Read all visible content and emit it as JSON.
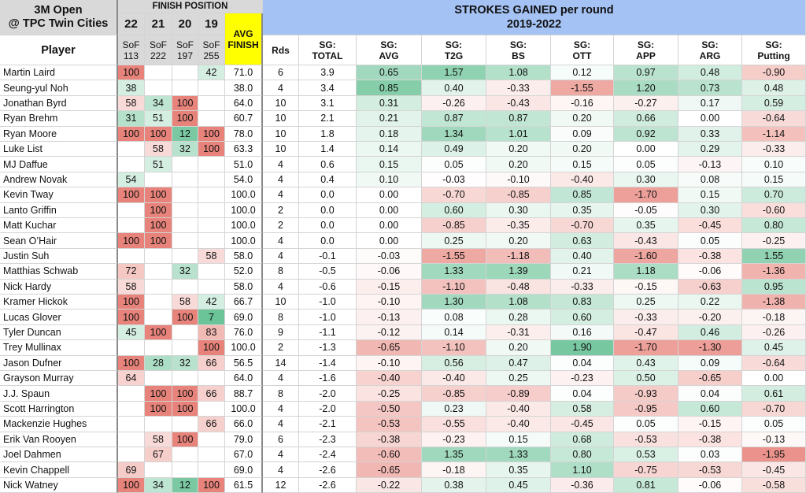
{
  "header": {
    "event_line1": "3M Open",
    "event_line2": "@ TPC Twin Cities",
    "player_label": "Player",
    "finish_position_label": "FINISH POSITION",
    "years": [
      "22",
      "21",
      "20",
      "19"
    ],
    "sof_label": "SoF",
    "sof_values": [
      "113",
      "222",
      "197",
      "255"
    ],
    "avg_finish_line1": "AVG",
    "avg_finish_line2": "FINISH",
    "sg_title_line1": "STROKES GAINED per round",
    "sg_title_line2": "2019-2022",
    "rds_label": "Rds",
    "stat_columns": [
      [
        "SG:",
        "TOTAL"
      ],
      [
        "SG:",
        "AVG"
      ],
      [
        "SG:",
        "T2G"
      ],
      [
        "SG:",
        "BS"
      ],
      [
        "SG:",
        "OTT"
      ],
      [
        "SG:",
        "APP"
      ],
      [
        "SG:",
        "ARG"
      ],
      [
        "SG:",
        "Putting"
      ]
    ]
  },
  "colors": {
    "header_gray": "#d9d9d9",
    "sg_header_blue": "#a4c2f4",
    "avg_finish_yellow": "#ffff00",
    "heat_positive": "#57bb8a",
    "heat_negative": "#e67c73",
    "finish_good": "#57bb8a",
    "finish_bad": "#e67c73"
  },
  "chart_data": {
    "type": "table",
    "columns": [
      "Player",
      "22",
      "21",
      "20",
      "19",
      "AVG FINISH",
      "Rds",
      "SG: TOTAL",
      "SG: AVG",
      "SG: T2G",
      "SG: BS",
      "SG: OTT",
      "SG: APP",
      "SG: ARG",
      "SG: Putting"
    ],
    "rows": [
      {
        "player": "Martin Laird",
        "finish": [
          "100",
          "",
          "",
          "42"
        ],
        "avg": "71.0",
        "rds": "6",
        "sg": [
          "3.9",
          "0.65",
          "1.57",
          "1.08",
          "0.12",
          "0.97",
          "0.48",
          "-0.90"
        ]
      },
      {
        "player": "Seung-yul Noh",
        "finish": [
          "38",
          "",
          "",
          ""
        ],
        "avg": "38.0",
        "rds": "4",
        "sg": [
          "3.4",
          "0.85",
          "0.40",
          "-0.33",
          "-1.55",
          "1.20",
          "0.73",
          "0.48"
        ]
      },
      {
        "player": "Jonathan Byrd",
        "finish": [
          "58",
          "34",
          "100",
          ""
        ],
        "avg": "64.0",
        "rds": "10",
        "sg": [
          "3.1",
          "0.31",
          "-0.26",
          "-0.43",
          "-0.16",
          "-0.27",
          "0.17",
          "0.59"
        ]
      },
      {
        "player": "Ryan Brehm",
        "finish": [
          "31",
          "51",
          "100",
          ""
        ],
        "avg": "60.7",
        "rds": "10",
        "sg": [
          "2.1",
          "0.21",
          "0.87",
          "0.87",
          "0.20",
          "0.66",
          "0.00",
          "-0.64"
        ]
      },
      {
        "player": "Ryan Moore",
        "finish": [
          "100",
          "100",
          "12",
          "100"
        ],
        "avg": "78.0",
        "rds": "10",
        "sg": [
          "1.8",
          "0.18",
          "1.34",
          "1.01",
          "0.09",
          "0.92",
          "0.33",
          "-1.14"
        ]
      },
      {
        "player": "Luke List",
        "finish": [
          "",
          "58",
          "32",
          "100"
        ],
        "avg": "63.3",
        "rds": "10",
        "sg": [
          "1.4",
          "0.14",
          "0.49",
          "0.20",
          "0.20",
          "0.00",
          "0.29",
          "-0.33"
        ]
      },
      {
        "player": "MJ Daffue",
        "finish": [
          "",
          "51",
          "",
          ""
        ],
        "avg": "51.0",
        "rds": "4",
        "sg": [
          "0.6",
          "0.15",
          "0.05",
          "0.20",
          "0.15",
          "0.05",
          "-0.13",
          "0.10"
        ]
      },
      {
        "player": "Andrew Novak",
        "finish": [
          "54",
          "",
          "",
          ""
        ],
        "avg": "54.0",
        "rds": "4",
        "sg": [
          "0.4",
          "0.10",
          "-0.03",
          "-0.10",
          "-0.40",
          "0.30",
          "0.08",
          "0.15"
        ]
      },
      {
        "player": "Kevin Tway",
        "finish": [
          "100",
          "100",
          "",
          ""
        ],
        "avg": "100.0",
        "rds": "4",
        "sg": [
          "0.0",
          "0.00",
          "-0.70",
          "-0.85",
          "0.85",
          "-1.70",
          "0.15",
          "0.70"
        ]
      },
      {
        "player": "Lanto Griffin",
        "finish": [
          "",
          "100",
          "",
          ""
        ],
        "avg": "100.0",
        "rds": "2",
        "sg": [
          "0.0",
          "0.00",
          "0.60",
          "0.30",
          "0.35",
          "-0.05",
          "0.30",
          "-0.60"
        ]
      },
      {
        "player": "Matt Kuchar",
        "finish": [
          "",
          "100",
          "",
          ""
        ],
        "avg": "100.0",
        "rds": "2",
        "sg": [
          "0.0",
          "0.00",
          "-0.85",
          "-0.35",
          "-0.70",
          "0.35",
          "-0.45",
          "0.80"
        ]
      },
      {
        "player": "Sean O’Hair",
        "finish": [
          "100",
          "100",
          "",
          ""
        ],
        "avg": "100.0",
        "rds": "4",
        "sg": [
          "0.0",
          "0.00",
          "0.25",
          "0.20",
          "0.63",
          "-0.43",
          "0.05",
          "-0.25"
        ]
      },
      {
        "player": "Justin Suh",
        "finish": [
          "",
          "",
          "",
          "58"
        ],
        "avg": "58.0",
        "rds": "4",
        "sg": [
          "-0.1",
          "-0.03",
          "-1.55",
          "-1.18",
          "0.40",
          "-1.60",
          "-0.38",
          "1.55"
        ]
      },
      {
        "player": "Matthias Schwab",
        "finish": [
          "72",
          "",
          "32",
          ""
        ],
        "avg": "52.0",
        "rds": "8",
        "sg": [
          "-0.5",
          "-0.06",
          "1.33",
          "1.39",
          "0.21",
          "1.18",
          "-0.06",
          "-1.36"
        ]
      },
      {
        "player": "Nick Hardy",
        "finish": [
          "58",
          "",
          "",
          ""
        ],
        "avg": "58.0",
        "rds": "4",
        "sg": [
          "-0.6",
          "-0.15",
          "-1.10",
          "-0.48",
          "-0.33",
          "-0.15",
          "-0.63",
          "0.95"
        ]
      },
      {
        "player": "Kramer Hickok",
        "finish": [
          "100",
          "",
          "58",
          "42"
        ],
        "avg": "66.7",
        "rds": "10",
        "sg": [
          "-1.0",
          "-0.10",
          "1.30",
          "1.08",
          "0.83",
          "0.25",
          "0.22",
          "-1.38"
        ]
      },
      {
        "player": "Lucas Glover",
        "finish": [
          "100",
          "",
          "100",
          "7"
        ],
        "avg": "69.0",
        "rds": "8",
        "sg": [
          "-1.0",
          "-0.13",
          "0.08",
          "0.28",
          "0.60",
          "-0.33",
          "-0.20",
          "-0.18"
        ]
      },
      {
        "player": "Tyler Duncan",
        "finish": [
          "45",
          "100",
          "",
          "83"
        ],
        "avg": "76.0",
        "rds": "9",
        "sg": [
          "-1.1",
          "-0.12",
          "0.14",
          "-0.31",
          "0.16",
          "-0.47",
          "0.46",
          "-0.26"
        ]
      },
      {
        "player": "Trey Mullinax",
        "finish": [
          "",
          "",
          "",
          "100"
        ],
        "avg": "100.0",
        "rds": "2",
        "sg": [
          "-1.3",
          "-0.65",
          "-1.10",
          "0.20",
          "1.90",
          "-1.70",
          "-1.30",
          "0.45"
        ]
      },
      {
        "player": "Jason Dufner",
        "finish": [
          "100",
          "28",
          "32",
          "66"
        ],
        "avg": "56.5",
        "rds": "14",
        "sg": [
          "-1.4",
          "-0.10",
          "0.56",
          "0.47",
          "0.04",
          "0.43",
          "0.09",
          "-0.64"
        ]
      },
      {
        "player": "Grayson Murray",
        "finish": [
          "64",
          "",
          "",
          ""
        ],
        "avg": "64.0",
        "rds": "4",
        "sg": [
          "-1.6",
          "-0.40",
          "-0.40",
          "0.25",
          "-0.23",
          "0.50",
          "-0.65",
          "0.00"
        ]
      },
      {
        "player": "J.J. Spaun",
        "finish": [
          "",
          "100",
          "100",
          "66"
        ],
        "avg": "88.7",
        "rds": "8",
        "sg": [
          "-2.0",
          "-0.25",
          "-0.85",
          "-0.89",
          "0.04",
          "-0.93",
          "0.04",
          "0.61"
        ]
      },
      {
        "player": "Scott Harrington",
        "finish": [
          "",
          "100",
          "100",
          ""
        ],
        "avg": "100.0",
        "rds": "4",
        "sg": [
          "-2.0",
          "-0.50",
          "0.23",
          "-0.40",
          "0.58",
          "-0.95",
          "0.60",
          "-0.70"
        ]
      },
      {
        "player": "Mackenzie Hughes",
        "finish": [
          "",
          "",
          "",
          "66"
        ],
        "avg": "66.0",
        "rds": "4",
        "sg": [
          "-2.1",
          "-0.53",
          "-0.55",
          "-0.40",
          "-0.45",
          "0.05",
          "-0.15",
          "0.05"
        ]
      },
      {
        "player": "Erik Van Rooyen",
        "finish": [
          "",
          "58",
          "100",
          ""
        ],
        "avg": "79.0",
        "rds": "6",
        "sg": [
          "-2.3",
          "-0.38",
          "-0.23",
          "0.15",
          "0.68",
          "-0.53",
          "-0.38",
          "-0.13"
        ]
      },
      {
        "player": "Joel Dahmen",
        "finish": [
          "",
          "67",
          "",
          ""
        ],
        "avg": "67.0",
        "rds": "4",
        "sg": [
          "-2.4",
          "-0.60",
          "1.35",
          "1.33",
          "0.80",
          "0.53",
          "0.03",
          "-1.95"
        ]
      },
      {
        "player": "Kevin Chappell",
        "finish": [
          "69",
          "",
          "",
          ""
        ],
        "avg": "69.0",
        "rds": "4",
        "sg": [
          "-2.6",
          "-0.65",
          "-0.18",
          "0.35",
          "1.10",
          "-0.75",
          "-0.53",
          "-0.45"
        ]
      },
      {
        "player": "Nick Watney",
        "finish": [
          "100",
          "34",
          "12",
          "100"
        ],
        "avg": "61.5",
        "rds": "12",
        "sg": [
          "-2.6",
          "-0.22",
          "0.38",
          "0.45",
          "-0.36",
          "0.81",
          "-0.06",
          "-0.58"
        ]
      }
    ]
  }
}
